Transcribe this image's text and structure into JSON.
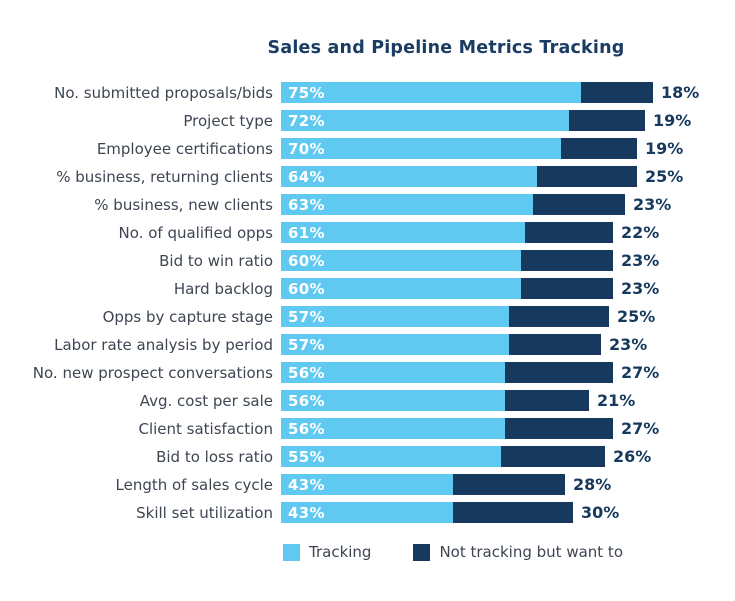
{
  "title": "Sales and Pipeline Metrics Tracking",
  "colors": {
    "tracking": "#5FC9F2",
    "not_tracking": "#17395E",
    "title_text": "#1B3C63",
    "label_text": "#3D4652",
    "inside_value_text": "#FFFFFF",
    "outside_value_text": "#17395E",
    "background": "#FFFFFF"
  },
  "legend": [
    {
      "label": "Tracking",
      "color": "#5FC9F2"
    },
    {
      "label": "Not tracking but want to",
      "color": "#17395E"
    }
  ],
  "chart_data": {
    "type": "bar",
    "orientation": "horizontal",
    "stacked": true,
    "title": "Sales and Pipeline Metrics Tracking",
    "xlabel": "",
    "ylabel": "",
    "xlim": [
      0,
      100
    ],
    "grid": false,
    "legend_position": "bottom",
    "value_suffix": "%",
    "categories": [
      "No. submitted proposals/bids",
      "Project type",
      "Employee certifications",
      "% business, returning clients",
      "% business, new clients",
      "No. of qualified opps",
      "Bid to win ratio",
      "Hard backlog",
      "Opps by capture stage",
      "Labor rate analysis by period",
      "No. new prospect conversations",
      "Avg. cost per sale",
      "Client satisfaction",
      "Bid to loss ratio",
      "Length of sales cycle",
      "Skill set utilization"
    ],
    "series": [
      {
        "name": "Tracking",
        "color": "#5FC9F2",
        "values": [
          75,
          72,
          70,
          64,
          63,
          61,
          60,
          60,
          57,
          57,
          56,
          56,
          56,
          55,
          43,
          43
        ]
      },
      {
        "name": "Not tracking but want to",
        "color": "#17395E",
        "values": [
          18,
          19,
          19,
          25,
          23,
          22,
          23,
          23,
          25,
          23,
          27,
          21,
          27,
          26,
          28,
          30
        ]
      }
    ]
  }
}
